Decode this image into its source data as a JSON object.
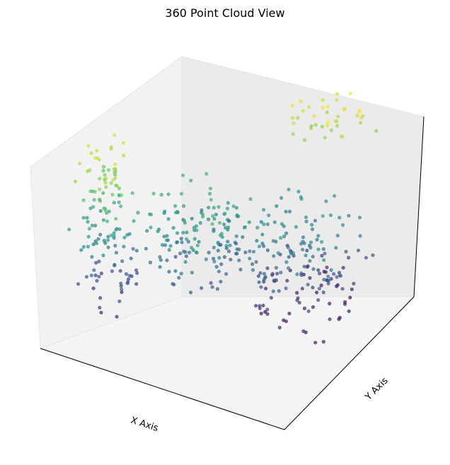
{
  "chart_data": {
    "type": "scatter3d",
    "title": "360 Point Cloud View",
    "xlabel": "X Axis",
    "ylabel": "Y Axis",
    "zlabel": "",
    "tick_labels": "hidden",
    "grid": false,
    "colormap": "viridis",
    "colormap_stops": [
      "#440154",
      "#3b528b",
      "#21918c",
      "#5ec962",
      "#fde725"
    ],
    "color_by": "z",
    "marker_alpha": 0.7,
    "clusters": [
      {
        "name": "",
        "x_range": [
          0.05,
          0.25
        ],
        "y_range": [
          0.05,
          0.3
        ],
        "z_range": [
          0.1,
          0.95
        ],
        "count": 140
      },
      {
        "name": "",
        "x_range": [
          0.25,
          0.55
        ],
        "y_range": [
          0.2,
          0.55
        ],
        "z_range": [
          0.25,
          0.65
        ],
        "count": 150
      },
      {
        "name": "",
        "x_range": [
          0.55,
          0.9
        ],
        "y_range": [
          0.35,
          0.8
        ],
        "z_range": [
          0.05,
          0.55
        ],
        "count": 190
      },
      {
        "name": "",
        "x_range": [
          0.6,
          0.85
        ],
        "y_range": [
          0.7,
          0.95
        ],
        "z_range": [
          0.8,
          1.0
        ],
        "count": 40
      }
    ],
    "axis_ranges": {
      "x": [
        0,
        1
      ],
      "y": [
        0,
        1
      ],
      "z": [
        0,
        1
      ]
    }
  }
}
